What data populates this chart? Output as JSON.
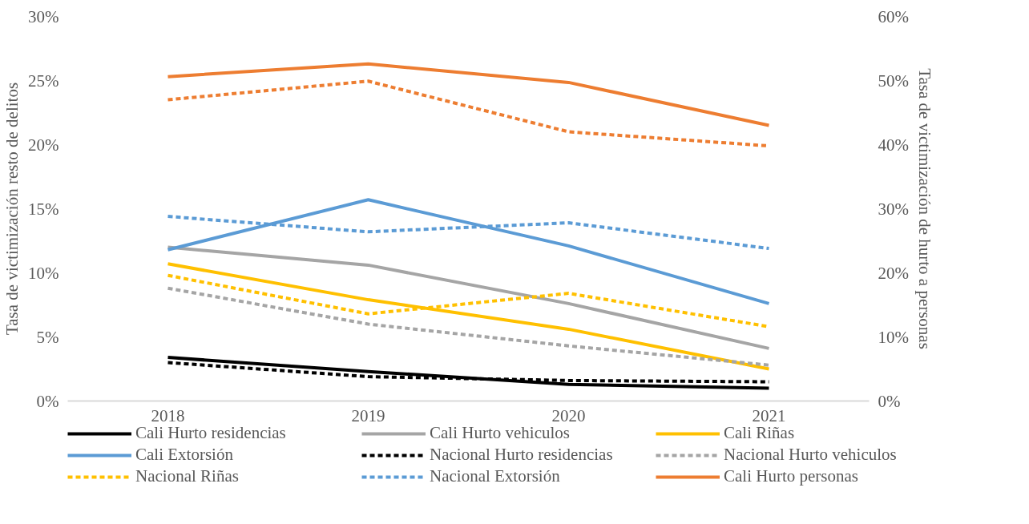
{
  "chart_data": {
    "type": "line",
    "ylabel": "Tasa de victimización resto de delitos",
    "y2label": "Tasa de victimización de hurto a personas",
    "categories": [
      "2018",
      "2019",
      "2020",
      "2021"
    ],
    "ylim": [
      0,
      30
    ],
    "yticks": [
      {
        "value": 0,
        "label": "0%"
      },
      {
        "value": 5,
        "label": "5%"
      },
      {
        "value": 10,
        "label": "10%"
      },
      {
        "value": 15,
        "label": "15%"
      },
      {
        "value": 20,
        "label": "20%"
      },
      {
        "value": 25,
        "label": "25%"
      },
      {
        "value": 30,
        "label": "30%"
      }
    ],
    "y2lim": [
      0,
      60
    ],
    "y2ticks": [
      {
        "value": 0,
        "label": "0%"
      },
      {
        "value": 10,
        "label": "10%"
      },
      {
        "value": 20,
        "label": "20%"
      },
      {
        "value": 30,
        "label": "30%"
      },
      {
        "value": 40,
        "label": "40%"
      },
      {
        "value": 50,
        "label": "50%"
      },
      {
        "value": 60,
        "label": "60%"
      }
    ],
    "grid": false,
    "legend": "bottom",
    "series": [
      {
        "name": "Cali Hurto residencias",
        "color": "#000000",
        "line_style": "solid",
        "values": [
          3.4,
          2.3,
          1.3,
          1.0
        ]
      },
      {
        "name": "Cali Hurto vehiculos",
        "color": "#a5a5a5",
        "line_style": "solid",
        "values": [
          12.0,
          10.6,
          7.6,
          4.1
        ]
      },
      {
        "name": "Cali Riñas",
        "color": "#ffc000",
        "line_style": "solid",
        "values": [
          10.7,
          7.9,
          5.6,
          2.5
        ]
      },
      {
        "name": "Cali Extorsión",
        "color": "#5b9bd5",
        "line_style": "solid",
        "values": [
          11.8,
          15.7,
          12.1,
          7.6
        ]
      },
      {
        "name": "Nacional Hurto residencias",
        "color": "#000000",
        "line_style": "dashed",
        "values": [
          3.0,
          1.9,
          1.6,
          1.5
        ]
      },
      {
        "name": "Nacional Hurto vehiculos",
        "color": "#a5a5a5",
        "line_style": "dashed",
        "values": [
          8.8,
          6.0,
          4.3,
          2.8
        ]
      },
      {
        "name": "Nacional Riñas",
        "color": "#ffc000",
        "line_style": "dashed",
        "values": [
          9.8,
          6.8,
          8.4,
          5.8
        ]
      },
      {
        "name": "Nacional Extorsión",
        "color": "#5b9bd5",
        "line_style": "dashed",
        "values": [
          14.4,
          13.2,
          13.9,
          11.9
        ]
      },
      {
        "name": "Cali Hurto personas",
        "color": "#ed7d31",
        "line_style": "solid",
        "axis": "y2",
        "values": [
          50.6,
          52.6,
          49.7,
          43.0
        ]
      },
      {
        "color": "#ed7d31",
        "line_style": "dashed",
        "axis": "y2",
        "values": [
          47.0,
          49.9,
          42.0,
          39.8
        ]
      }
    ]
  }
}
